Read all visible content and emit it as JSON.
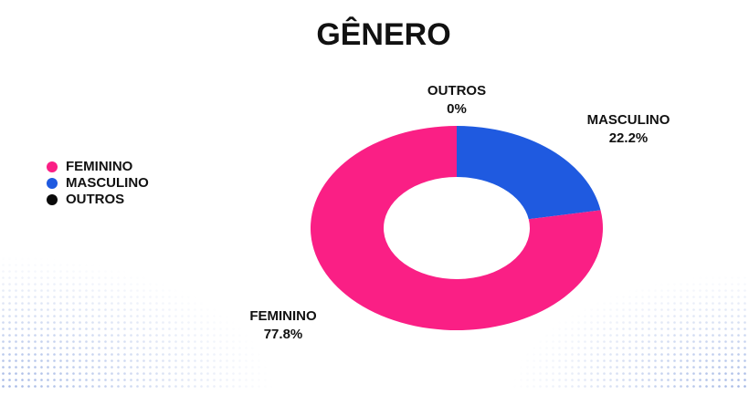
{
  "chart_data": {
    "type": "donut",
    "title": "GÊNERO",
    "categories": [
      "FEMININO",
      "MASCULINO",
      "OUTROS"
    ],
    "values": [
      77.8,
      22.2,
      0
    ],
    "value_labels": [
      "77.8%",
      "22.2%",
      "0%"
    ],
    "colors": [
      "#fa1f85",
      "#1f5ae0",
      "#0a0a0a"
    ],
    "legend": "left"
  }
}
